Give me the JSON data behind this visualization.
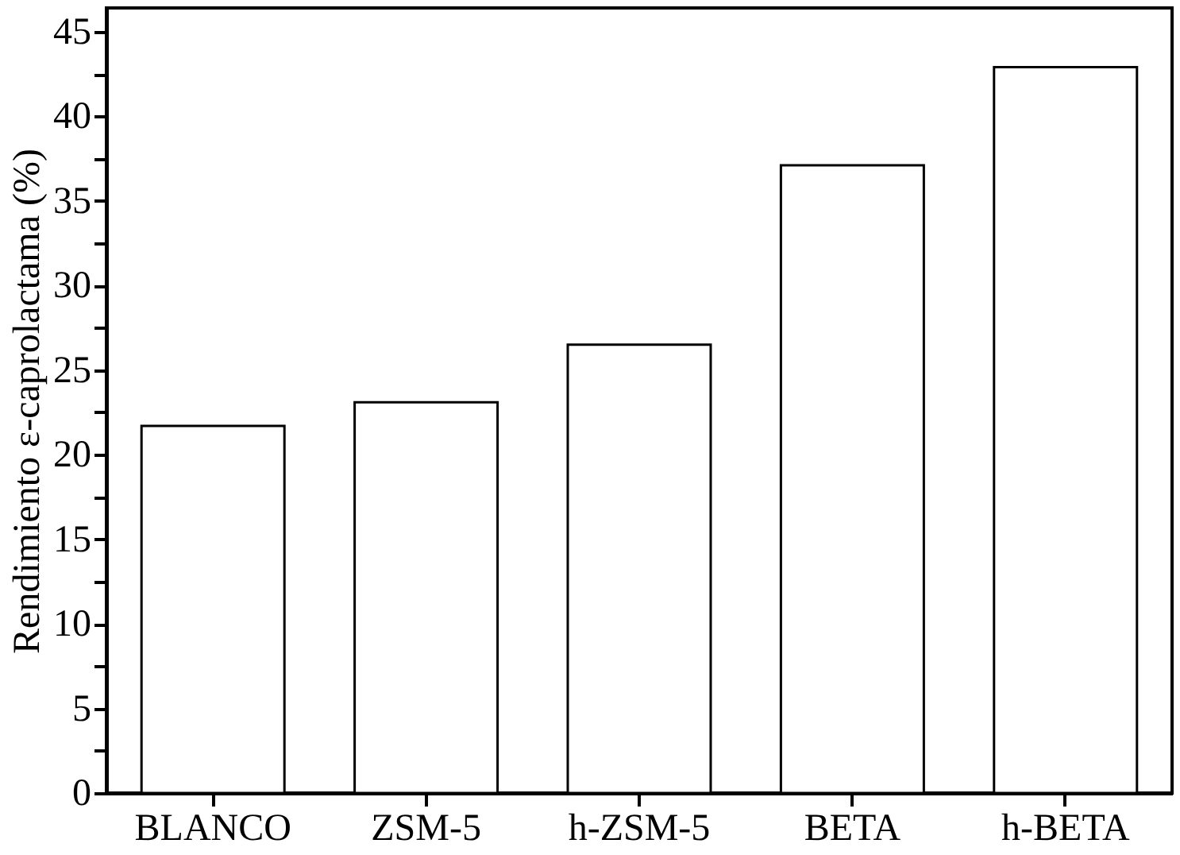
{
  "chart_data": {
    "type": "bar",
    "ylabel": "Rendimiento ε-caprolactama (%)",
    "categories": [
      "BLANCO",
      "ZSM-5",
      "h-ZSM-5",
      "BETA",
      "h-BETA"
    ],
    "values": [
      21.7,
      23.1,
      26.5,
      37.1,
      42.9
    ],
    "color": "#ffffff",
    "ylim": [
      0,
      46.4
    ],
    "yticks": [
      0,
      {
        "value": 2.5,
        "label": null
      },
      5,
      {
        "value": 7.5,
        "label": null
      },
      10,
      {
        "value": 12.5,
        "label": null
      },
      15,
      {
        "value": 17.5,
        "label": null
      },
      20,
      {
        "value": 22.5,
        "label": null
      },
      25,
      {
        "value": 27.5,
        "label": null
      },
      30,
      {
        "value": 32.5,
        "label": null
      },
      35,
      {
        "value": 37.5,
        "label": null
      },
      40,
      {
        "value": 42.5,
        "label": null
      },
      45
    ],
    "grid": false
  }
}
